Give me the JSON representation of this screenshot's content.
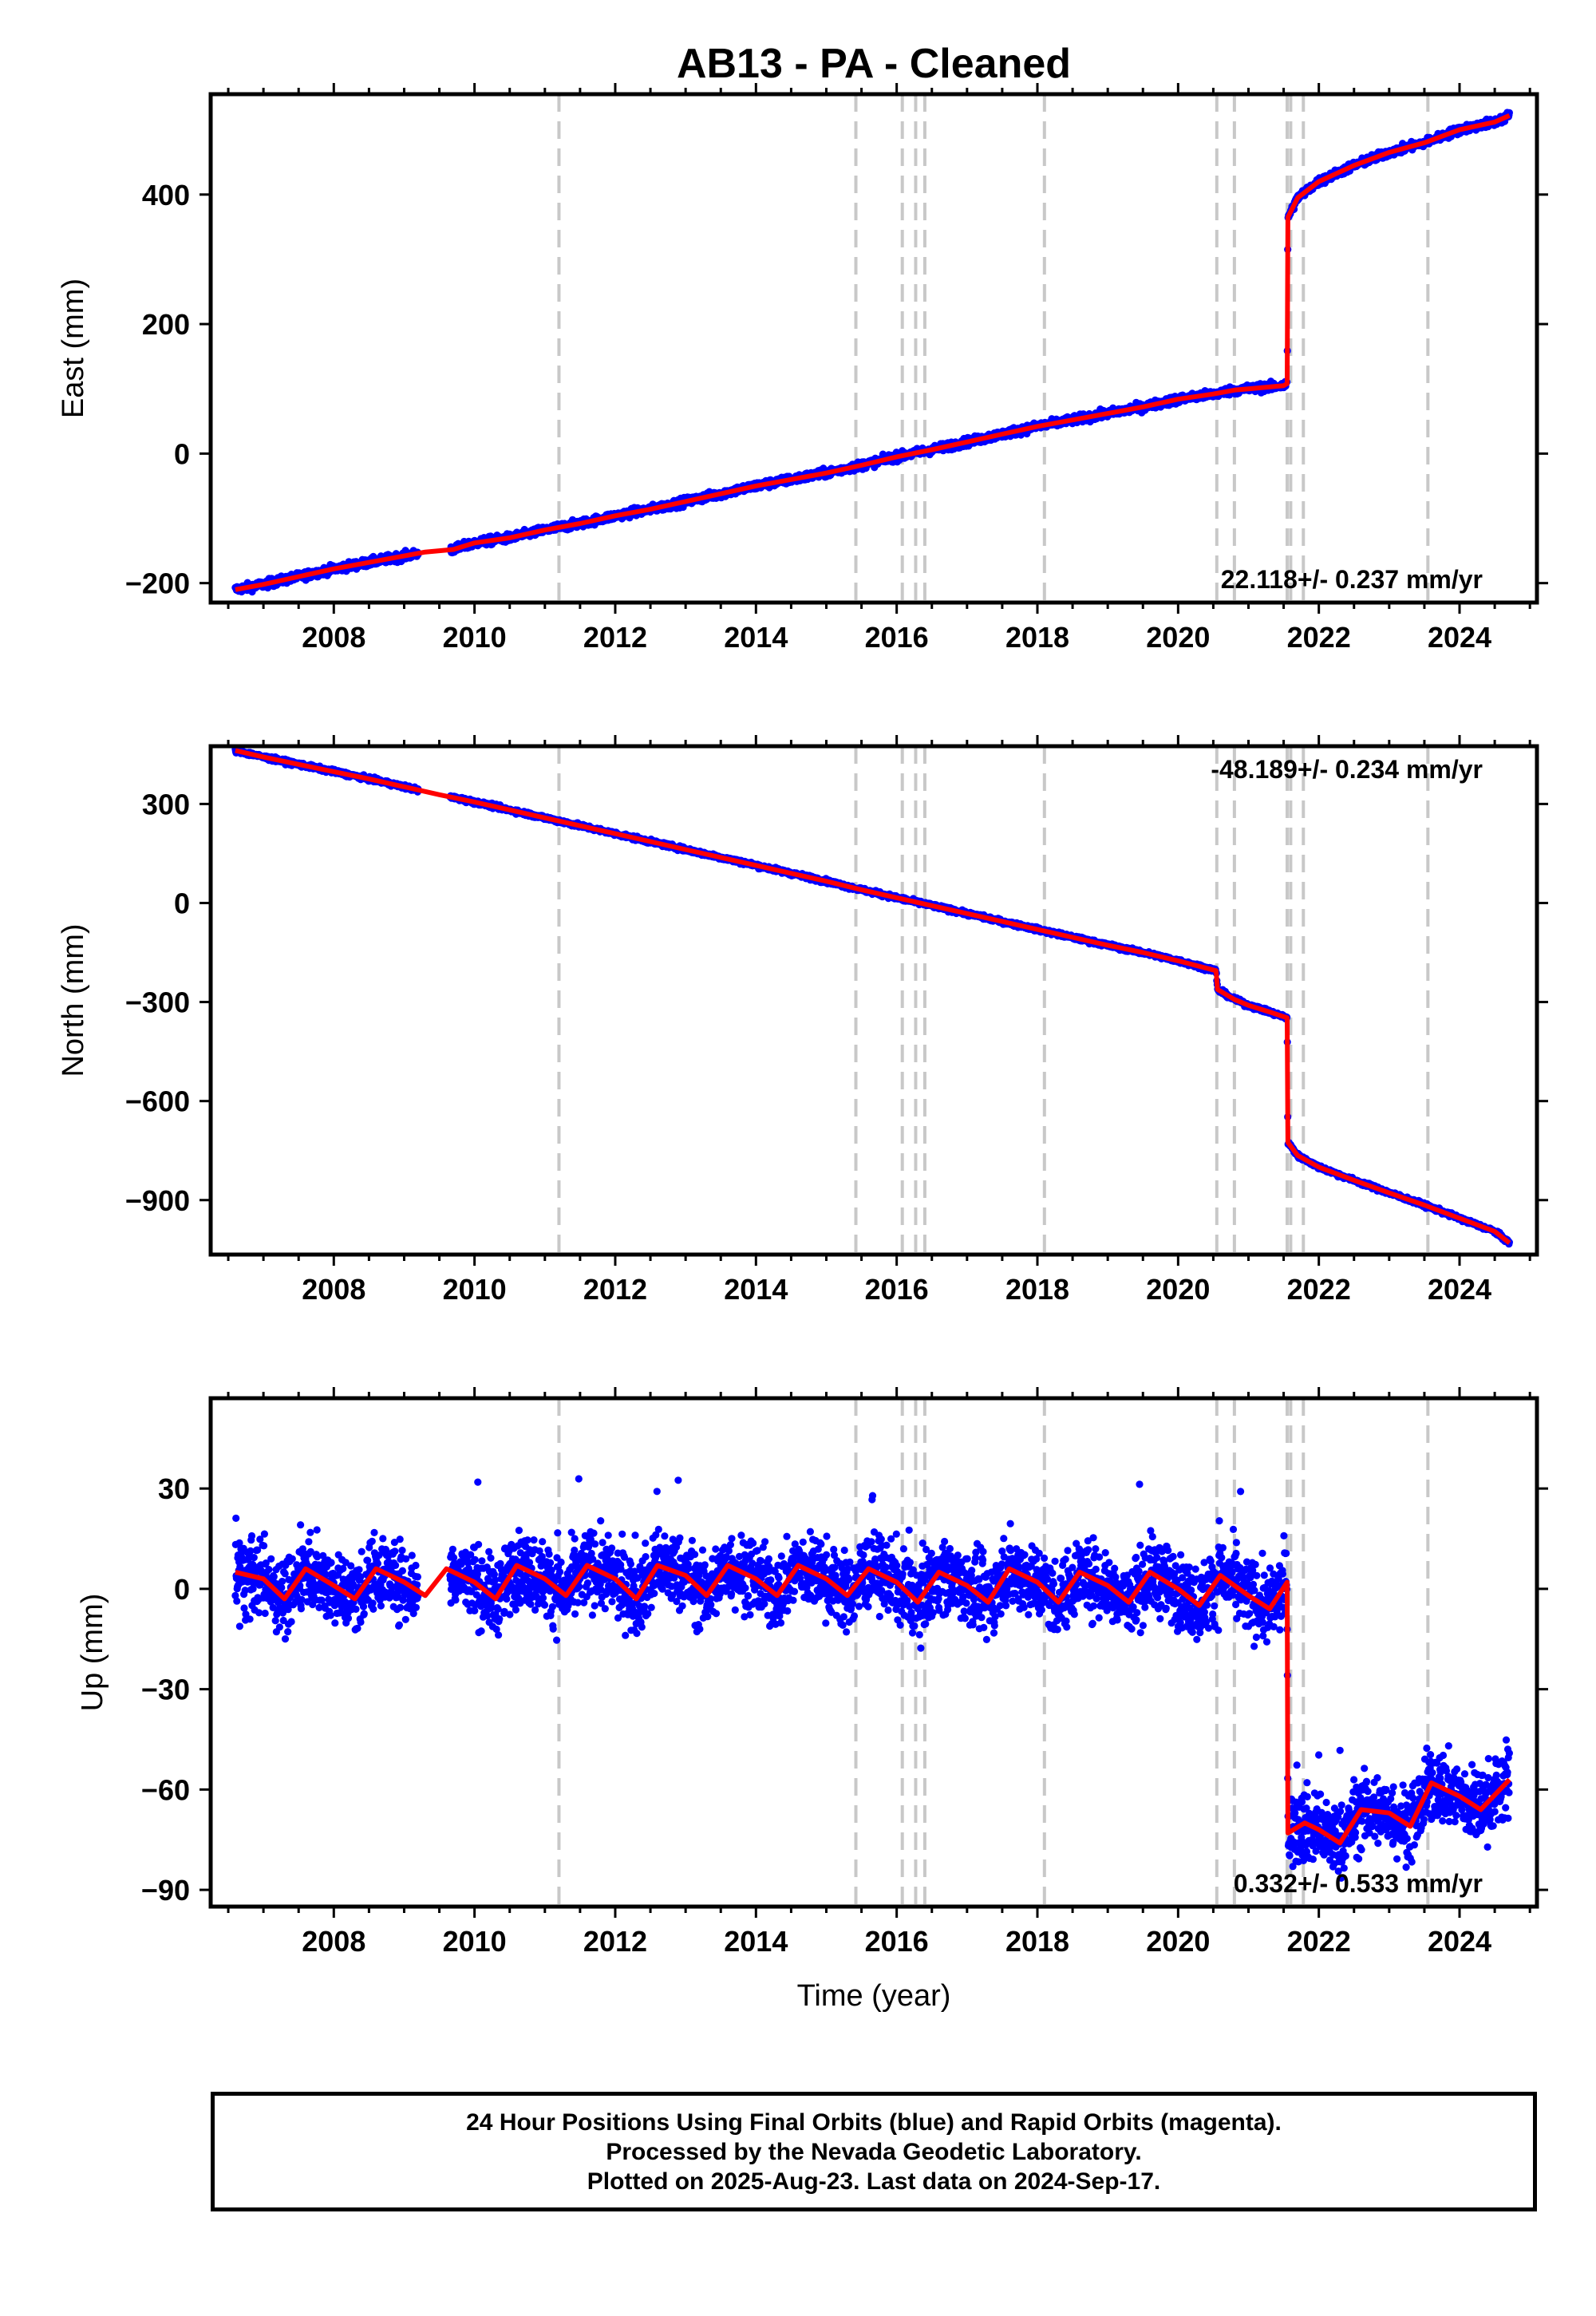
{
  "title": "AB13  - PA - Cleaned",
  "xlabel": "Time (year)",
  "colors": {
    "final_orbits": "#0000ff",
    "model_fit": "#ff0000",
    "breaks": "#c8c8c8",
    "frame": "#000000"
  },
  "footer": {
    "line1": "24 Hour Positions Using Final Orbits (blue) and Rapid Orbits (magenta).",
    "line2": "Processed by the Nevada Geodetic Laboratory.",
    "line3": "Plotted on 2025-Aug-23. Last data on 2024-Sep-17."
  },
  "chart_data": [
    {
      "type": "scatter",
      "ylabel": "East (mm)",
      "rate_label": "22.118+/- 0.237 mm/yr",
      "xlim": [
        2006.25,
        2025.1
      ],
      "ylim": [
        -230,
        555
      ],
      "x_ticks": [
        "2008",
        "2010",
        "2012",
        "2014",
        "2016",
        "2018",
        "2020",
        "2022",
        "2024"
      ],
      "y_ticks": [
        "−200",
        "0",
        "200",
        "400"
      ],
      "y_tick_values": [
        -200,
        0,
        200,
        400
      ],
      "equipment_breaks": [
        2011.2,
        2015.42,
        2016.08,
        2016.27,
        2016.4,
        2018.1,
        2020.55,
        2020.8,
        2021.55,
        2021.6,
        2021.78,
        2023.55
      ],
      "series": [
        {
          "name": "",
          "x": [
            2006.6,
            2007.0,
            2007.5,
            2008.0,
            2008.5,
            2009.0,
            2009.3,
            2009.7,
            2010.0,
            2010.5,
            2011.0,
            2011.5,
            2012.0,
            2012.5,
            2013.0,
            2013.5,
            2014.0,
            2014.5,
            2015.0,
            2015.5,
            2016.0,
            2016.5,
            2017.0,
            2017.5,
            2018.0,
            2018.5,
            2019.0,
            2019.5,
            2020.0,
            2020.5,
            2020.8,
            2021.0,
            2021.5,
            2021.55,
            2021.56,
            2021.7,
            2022.0,
            2022.5,
            2023.0,
            2023.5,
            2024.0,
            2024.5,
            2024.71
          ],
          "y": [
            -210,
            -202,
            -190,
            -178,
            -168,
            -158,
            -152,
            -148,
            -138,
            -130,
            -118,
            -108,
            -96,
            -86,
            -74,
            -62,
            -50,
            -40,
            -30,
            -18,
            -5,
            6,
            18,
            30,
            42,
            52,
            62,
            72,
            84,
            92,
            98,
            100,
            105,
            108,
            365,
            395,
            420,
            445,
            465,
            480,
            500,
            512,
            522
          ]
        }
      ]
    },
    {
      "type": "scatter",
      "ylabel": "North (mm)",
      "rate_label": "-48.189+/- 0.234 mm/yr",
      "xlim": [
        2006.25,
        2025.1
      ],
      "ylim": [
        -1065,
        475
      ],
      "x_ticks": [
        "2008",
        "2010",
        "2012",
        "2014",
        "2016",
        "2018",
        "2020",
        "2022",
        "2024"
      ],
      "y_ticks": [
        "300",
        "0",
        "−300",
        "−600",
        "−900"
      ],
      "y_tick_values": [
        300,
        0,
        -300,
        -600,
        -900
      ],
      "equipment_breaks": [
        2011.2,
        2015.42,
        2016.08,
        2016.27,
        2016.4,
        2018.1,
        2020.55,
        2020.8,
        2021.55,
        2021.6,
        2021.78,
        2023.55
      ],
      "series": [
        {
          "name": "",
          "x": [
            2006.6,
            2007.0,
            2007.5,
            2008.0,
            2008.5,
            2009.0,
            2009.5,
            2010.0,
            2010.5,
            2011.0,
            2011.5,
            2012.0,
            2012.5,
            2013.0,
            2013.5,
            2014.0,
            2014.5,
            2015.0,
            2015.5,
            2016.0,
            2016.5,
            2017.0,
            2017.5,
            2018.0,
            2018.5,
            2019.0,
            2019.5,
            2020.0,
            2020.54,
            2020.56,
            2020.8,
            2021.0,
            2021.3,
            2021.55,
            2021.56,
            2021.7,
            2022.0,
            2022.5,
            2023.0,
            2023.5,
            2024.0,
            2024.5,
            2024.71
          ],
          "y": [
            462,
            442,
            420,
            398,
            376,
            352,
            328,
            306,
            282,
            258,
            234,
            210,
            186,
            162,
            138,
            114,
            90,
            66,
            40,
            16,
            -8,
            -32,
            -56,
            -80,
            -104,
            -128,
            -150,
            -175,
            -205,
            -262,
            -292,
            -310,
            -330,
            -348,
            -725,
            -765,
            -800,
            -840,
            -878,
            -915,
            -955,
            -995,
            -1030
          ]
        }
      ]
    },
    {
      "type": "scatter",
      "ylabel": "Up (mm)",
      "rate_label": "0.332+/- 0.533 mm/yr",
      "xlim": [
        2006.25,
        2025.1
      ],
      "ylim": [
        -95,
        57
      ],
      "x_ticks": [
        "2008",
        "2010",
        "2012",
        "2014",
        "2016",
        "2018",
        "2020",
        "2022",
        "2024"
      ],
      "y_ticks": [
        "30",
        "0",
        "−30",
        "−60",
        "−90"
      ],
      "y_tick_values": [
        30,
        0,
        -30,
        -60,
        -90
      ],
      "equipment_breaks": [
        2011.2,
        2015.42,
        2016.08,
        2016.27,
        2016.4,
        2018.1,
        2020.55,
        2020.8,
        2021.55,
        2021.6,
        2021.78,
        2023.55
      ],
      "series": [
        {
          "name": "",
          "x": [
            2006.6,
            2007.0,
            2007.3,
            2007.6,
            2008.0,
            2008.3,
            2008.6,
            2009.0,
            2009.3,
            2009.6,
            2010.0,
            2010.3,
            2010.6,
            2011.0,
            2011.3,
            2011.6,
            2012.0,
            2012.3,
            2012.6,
            2013.0,
            2013.3,
            2013.6,
            2014.0,
            2014.3,
            2014.6,
            2015.0,
            2015.3,
            2015.6,
            2016.0,
            2016.3,
            2016.6,
            2017.0,
            2017.3,
            2017.6,
            2018.0,
            2018.3,
            2018.6,
            2019.0,
            2019.3,
            2019.6,
            2020.0,
            2020.3,
            2020.6,
            2021.0,
            2021.3,
            2021.55,
            2021.56,
            2021.8,
            2022.0,
            2022.3,
            2022.6,
            2023.0,
            2023.3,
            2023.6,
            2024.0,
            2024.3,
            2024.71
          ],
          "y": [
            5,
            3,
            -3,
            6,
            1,
            -3,
            6,
            2,
            -2,
            6,
            2,
            -3,
            7,
            3,
            -2,
            7,
            3,
            -3,
            7,
            4,
            -2,
            7,
            3,
            -2,
            7,
            3,
            -2,
            6,
            2,
            -4,
            5,
            1,
            -4,
            6,
            2,
            -4,
            5,
            1,
            -4,
            5,
            0,
            -5,
            4,
            -2,
            -6,
            2,
            -73,
            -70,
            -72,
            -76,
            -66,
            -67,
            -71,
            -58,
            -62,
            -66,
            -57
          ]
        }
      ]
    }
  ]
}
